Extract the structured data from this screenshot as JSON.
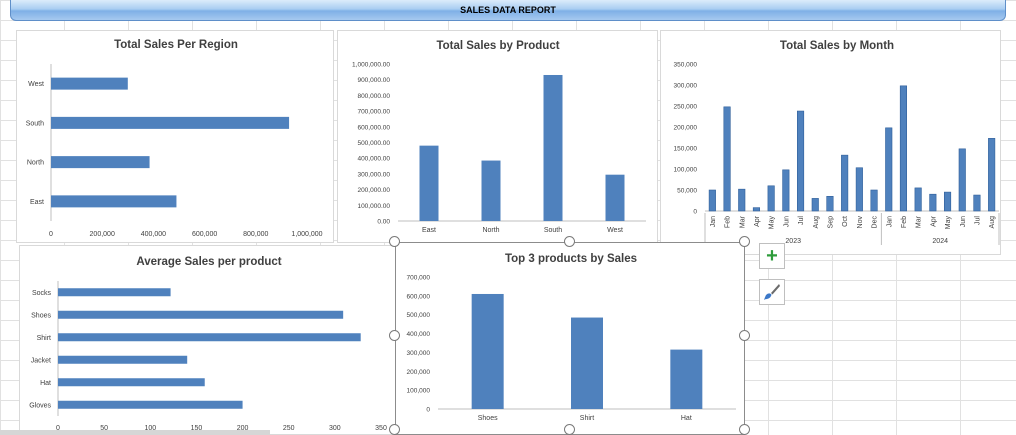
{
  "report": {
    "title": "SALES DATA REPORT"
  },
  "colors": {
    "bar": "#4f81bd",
    "bar_dark": "#2f5f9a",
    "grid": "#e4e4e4"
  },
  "chart_data": [
    {
      "id": "region",
      "type": "bar",
      "orientation": "horizontal",
      "title": "Total Sales Per Region",
      "categories": [
        "West",
        "South",
        "North",
        "East"
      ],
      "values": [
        300000,
        930000,
        385000,
        490000
      ],
      "xlim": [
        0,
        1000000
      ],
      "ticks": [
        "0",
        "200,000",
        "400,000",
        "600,000",
        "800,000",
        "1,000,000"
      ],
      "grid": false
    },
    {
      "id": "product",
      "type": "bar",
      "title": "Total Sales by Product",
      "categories": [
        "East",
        "North",
        "South",
        "West"
      ],
      "values": [
        480000,
        385000,
        930000,
        295000
      ],
      "ylim": [
        0,
        1000000
      ],
      "ticks": [
        "0.00",
        "100,000.00",
        "200,000.00",
        "300,000.00",
        "400,000.00",
        "500,000.00",
        "600,000.00",
        "700,000.00",
        "800,000.00",
        "900,000.00",
        "1,000,000.00"
      ],
      "grid": false
    },
    {
      "id": "month",
      "type": "bar",
      "title": "Total Sales by Month",
      "categories": [
        "Jan",
        "Feb",
        "Mar",
        "Apr",
        "May",
        "Jun",
        "Jul",
        "Aug",
        "Sep",
        "Oct",
        "Nov",
        "Dec",
        "Jan",
        "Feb",
        "Mar",
        "Apr",
        "May",
        "Jun",
        "Jul",
        "Aug"
      ],
      "values": [
        50000,
        248000,
        52000,
        8000,
        60000,
        98000,
        238000,
        30000,
        35000,
        133000,
        103000,
        50000,
        198000,
        298000,
        55000,
        40000,
        45000,
        148000,
        38000,
        173000
      ],
      "groups": [
        {
          "label": "2023",
          "count": 12
        },
        {
          "label": "2024",
          "count": 8
        }
      ],
      "ylim": [
        0,
        350000
      ],
      "ticks": [
        "0",
        "50,000",
        "100,000",
        "150,000",
        "200,000",
        "250,000",
        "300,000",
        "350,000"
      ],
      "grid": false
    },
    {
      "id": "average",
      "type": "bar",
      "orientation": "horizontal",
      "title": "Average Sales per product",
      "categories": [
        "Socks",
        "Shoes",
        "Shirt",
        "Jacket",
        "Hat",
        "Gloves"
      ],
      "values": [
        122,
        309,
        328,
        140,
        159,
        200
      ],
      "xlim": [
        0,
        350
      ],
      "ticks": [
        "0",
        "50",
        "100",
        "150",
        "200",
        "250",
        "300",
        "350"
      ],
      "grid": false
    },
    {
      "id": "top3",
      "type": "bar",
      "title": "Top 3 products by Sales",
      "categories": [
        "Shoes",
        "Shirt",
        "Hat"
      ],
      "values": [
        610000,
        485000,
        315000
      ],
      "ylim": [
        0,
        700000
      ],
      "ticks": [
        "0",
        "100,000",
        "200,000",
        "300,000",
        "400,000",
        "500,000",
        "600,000",
        "700,000"
      ],
      "grid": false
    }
  ],
  "side_buttons": {
    "add_icon": "plus-icon",
    "style_icon": "paintbrush-icon"
  }
}
